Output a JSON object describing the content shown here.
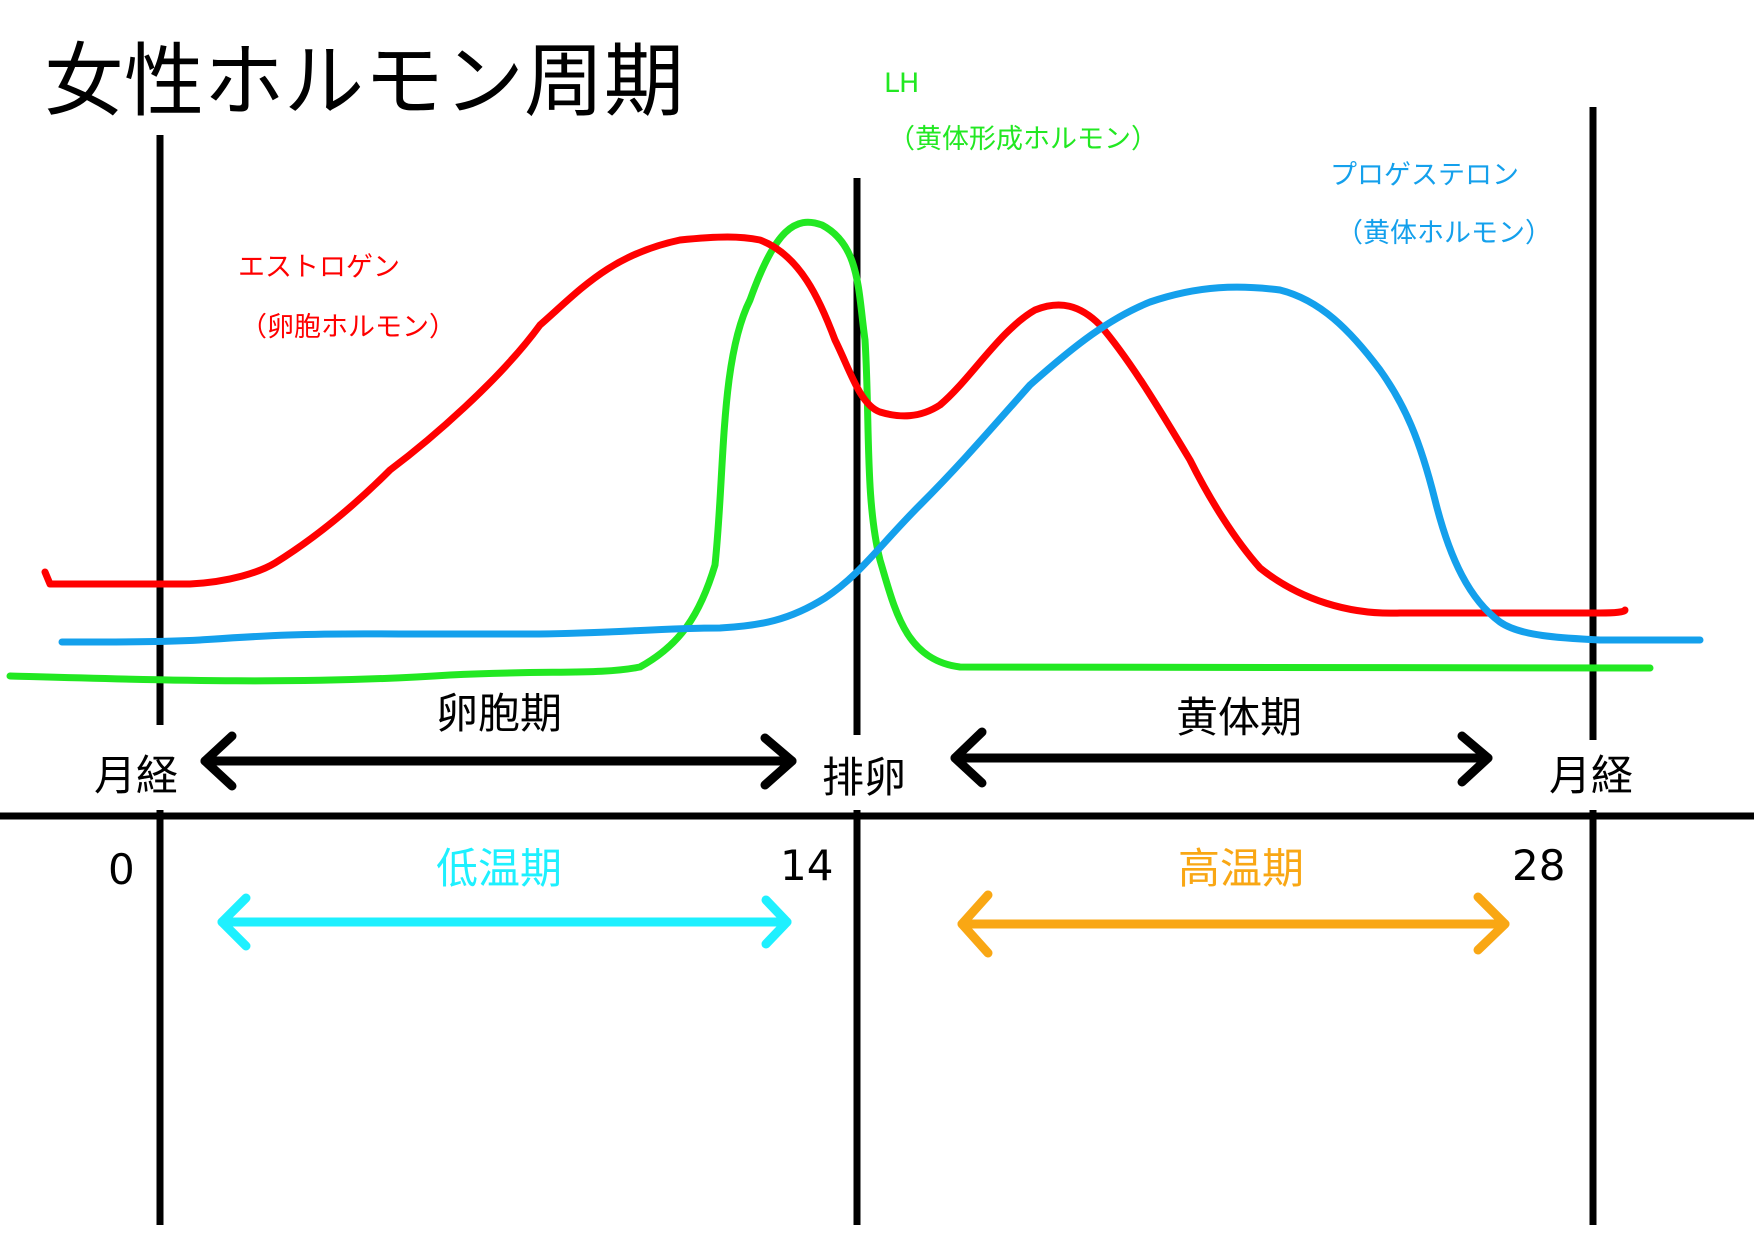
{
  "title": "女性ホルモン周期",
  "colors": {
    "estrogen": "#ff0000",
    "lh": "#22e822",
    "progesterone": "#14a0ec",
    "low_temp": "#1ef0ff",
    "high_temp": "#f9a714",
    "axis": "#000000"
  },
  "hormones": {
    "estrogen": {
      "name": "エストロゲン",
      "alias": "（卵胞ホルモン）"
    },
    "lh": {
      "name": "LH",
      "alias": "（黄体形成ホルモン）"
    },
    "progesterone": {
      "name": "プロゲステロン",
      "alias": "（黄体ホルモン）"
    }
  },
  "phases": {
    "follicular": "卵胞期",
    "luteal": "黄体期"
  },
  "events": {
    "menstruation_start": "月経",
    "ovulation": "排卵",
    "menstruation_end": "月経"
  },
  "days": {
    "start": "0",
    "mid": "14",
    "end": "28"
  },
  "temperature": {
    "low": "低温期",
    "high": "高温期"
  }
}
